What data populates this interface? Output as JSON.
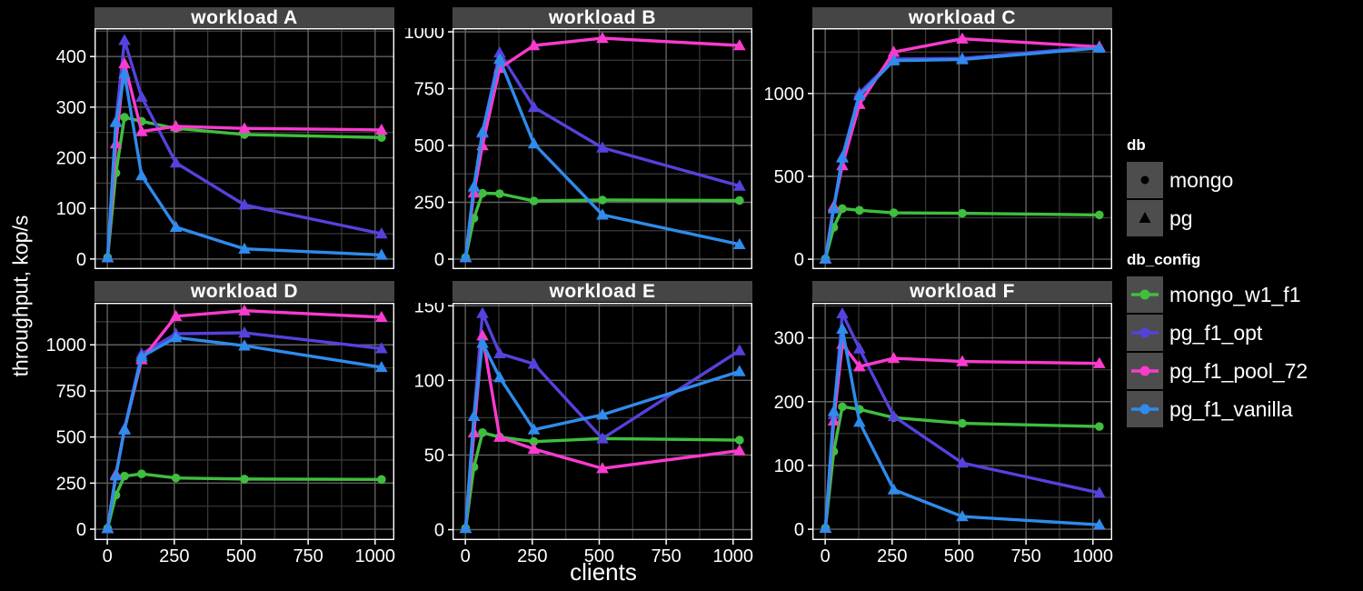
{
  "figure": {
    "ylabel": "throughput, kop/s",
    "xlabel": "clients"
  },
  "legend": {
    "db": {
      "title": "db",
      "items": [
        {
          "label": "mongo",
          "marker": "circle"
        },
        {
          "label": "pg",
          "marker": "triangle"
        }
      ]
    },
    "db_config": {
      "title": "db_config",
      "items": [
        {
          "label": "mongo_w1_f1",
          "color": "#3FBE3F"
        },
        {
          "label": "pg_f1_opt",
          "color": "#5542DD"
        },
        {
          "label": "pg_f1_pool_72",
          "color": "#F93BCE"
        },
        {
          "label": "pg_f1_vanilla",
          "color": "#2F8BEC"
        }
      ]
    }
  },
  "chart_data": {
    "type": "line",
    "title": "",
    "xlabel": "clients",
    "ylabel": "throughput, kop/s",
    "x": [
      1,
      32,
      64,
      128,
      256,
      512,
      1024
    ],
    "xlim": [
      -48,
      1072
    ],
    "x_ticks": [
      0,
      250,
      500,
      750,
      1000
    ],
    "x_minor": [
      125,
      375,
      625,
      875
    ],
    "grid": "on",
    "legend_position": "right",
    "series_meta": [
      {
        "name": "mongo_w1_f1",
        "db": "mongo",
        "marker": "circle",
        "color": "#3FBE3F"
      },
      {
        "name": "pg_f1_opt",
        "db": "pg",
        "marker": "triangle",
        "color": "#5542DD"
      },
      {
        "name": "pg_f1_pool_72",
        "db": "pg",
        "marker": "triangle",
        "color": "#F93BCE"
      },
      {
        "name": "pg_f1_vanilla",
        "db": "pg",
        "marker": "triangle",
        "color": "#2F8BEC"
      }
    ],
    "panels": [
      {
        "title": "workload A",
        "ylim": [
          -20,
          456
        ],
        "y_ticks": [
          0,
          100,
          200,
          300,
          400
        ],
        "y_minor": [
          50,
          150,
          250,
          350,
          450
        ],
        "series": {
          "mongo_w1_f1": [
            3,
            170,
            280,
            272,
            258,
            246,
            240
          ],
          "pg_f1_opt": [
            3,
            272,
            432,
            320,
            190,
            107,
            50
          ],
          "pg_f1_pool_72": [
            3,
            228,
            386,
            252,
            262,
            258,
            255
          ],
          "pg_f1_vanilla": [
            3,
            270,
            366,
            165,
            63,
            20,
            8
          ]
        }
      },
      {
        "title": "workload B",
        "ylim": [
          -44,
          1016
        ],
        "y_ticks": [
          0,
          250,
          500,
          750,
          1000
        ],
        "y_minor": [
          125,
          375,
          625,
          875
        ],
        "series": {
          "mongo_w1_f1": [
            8,
            180,
            290,
            288,
            256,
            260,
            258
          ],
          "pg_f1_opt": [
            8,
            315,
            555,
            908,
            668,
            490,
            322
          ],
          "pg_f1_pool_72": [
            8,
            292,
            500,
            840,
            940,
            972,
            940
          ],
          "pg_f1_vanilla": [
            8,
            320,
            560,
            880,
            508,
            195,
            65
          ]
        }
      },
      {
        "title": "workload C",
        "ylim": [
          -60,
          1394
        ],
        "y_ticks": [
          0,
          500,
          1000
        ],
        "y_minor": [
          250,
          750,
          1250
        ],
        "series": {
          "mongo_w1_f1": [
            3,
            192,
            305,
            295,
            280,
            277,
            267
          ],
          "pg_f1_opt": [
            3,
            312,
            618,
            1002,
            1208,
            1212,
            1282
          ],
          "pg_f1_pool_72": [
            3,
            320,
            565,
            935,
            1250,
            1330,
            1282
          ],
          "pg_f1_vanilla": [
            3,
            305,
            612,
            988,
            1198,
            1205,
            1275
          ]
        }
      },
      {
        "title": "workload D",
        "ylim": [
          -59,
          1228
        ],
        "y_ticks": [
          0,
          250,
          500,
          750,
          1000
        ],
        "y_minor": [
          125,
          375,
          625,
          875,
          1125
        ],
        "series": {
          "mongo_w1_f1": [
            5,
            185,
            288,
            300,
            278,
            272,
            270
          ],
          "pg_f1_opt": [
            5,
            295,
            545,
            950,
            1060,
            1065,
            980
          ],
          "pg_f1_pool_72": [
            5,
            298,
            540,
            920,
            1155,
            1185,
            1150
          ],
          "pg_f1_vanilla": [
            5,
            290,
            540,
            935,
            1040,
            995,
            878
          ]
        }
      },
      {
        "title": "workload E",
        "ylim": [
          -7,
          152
        ],
        "y_ticks": [
          0,
          50,
          100,
          150
        ],
        "y_minor": [
          25,
          75,
          125
        ],
        "series": {
          "mongo_w1_f1": [
            1,
            42,
            65,
            62,
            59,
            61,
            60
          ],
          "pg_f1_opt": [
            1,
            76,
            145,
            118,
            111,
            61,
            120
          ],
          "pg_f1_pool_72": [
            1,
            65,
            130,
            62,
            54,
            41,
            53
          ],
          "pg_f1_vanilla": [
            1,
            76,
            125,
            102,
            67,
            77,
            106
          ]
        }
      },
      {
        "title": "workload F",
        "ylim": [
          -17,
          355
        ],
        "y_ticks": [
          0,
          100,
          200,
          300
        ],
        "y_minor": [
          50,
          150,
          250,
          350
        ],
        "series": {
          "mongo_w1_f1": [
            2,
            122,
            192,
            188,
            175,
            166,
            161
          ],
          "pg_f1_opt": [
            2,
            180,
            338,
            283,
            177,
            104,
            57
          ],
          "pg_f1_pool_72": [
            2,
            170,
            290,
            255,
            268,
            263,
            260
          ],
          "pg_f1_vanilla": [
            2,
            185,
            314,
            168,
            62,
            20,
            7
          ]
        }
      }
    ],
    "style": {
      "background": "#000000",
      "panel_background": "#000000",
      "strip_background": "#454545",
      "grid_major": "#606060",
      "grid_minor": "#3a3a3a",
      "panel_border": "#FFFFFF",
      "text_color": "#FFFFFF",
      "legend_key_background": "#4d4d4d",
      "marker_black": "#000000"
    }
  }
}
